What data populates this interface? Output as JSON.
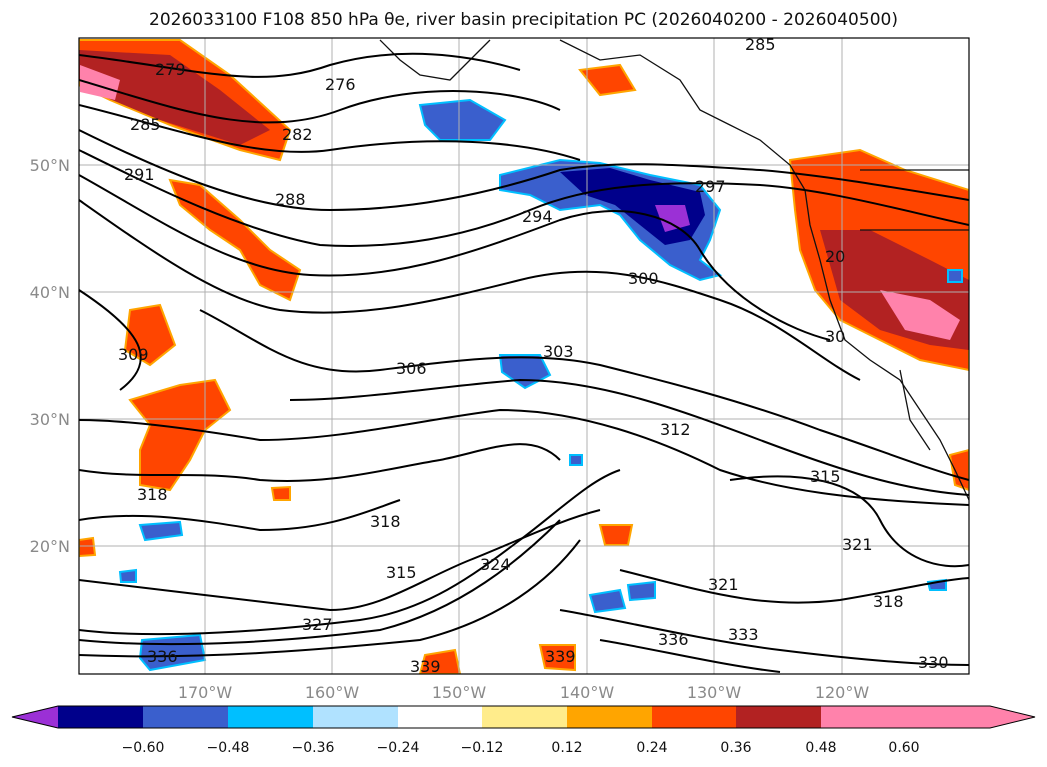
{
  "title": "2026033100 F108 850 hPa θe, river basin precipitation PC (2026040200 - 2026040500)",
  "map": {
    "lat_labels": [
      "50°N",
      "40°N",
      "30°N",
      "20°N"
    ],
    "lon_labels": [
      "170°W",
      "160°W",
      "150°W",
      "140°W",
      "130°W",
      "120°W"
    ],
    "contour_labels": [
      "279",
      "276",
      "285",
      "282",
      "291",
      "288",
      "294",
      "297",
      "300",
      "309",
      "306",
      "303",
      "312",
      "315",
      "318",
      "318",
      "321",
      "321",
      "315",
      "324",
      "327",
      "336",
      "336",
      "333",
      "339",
      "339",
      "330",
      "318",
      "285",
      "30",
      "20"
    ]
  },
  "colorbar": {
    "ticks": [
      "−0.60",
      "−0.48",
      "−0.36",
      "−0.24",
      "−0.12",
      "0.12",
      "0.24",
      "0.36",
      "0.48",
      "0.60"
    ],
    "colors": [
      "#9b30d6",
      "#00008b",
      "#3a5fcd",
      "#00bfff",
      "#b0e2ff",
      "#ffffff",
      "#ffec8b",
      "#ffa500",
      "#ff4500",
      "#b22222",
      "#ff82ab"
    ]
  }
}
